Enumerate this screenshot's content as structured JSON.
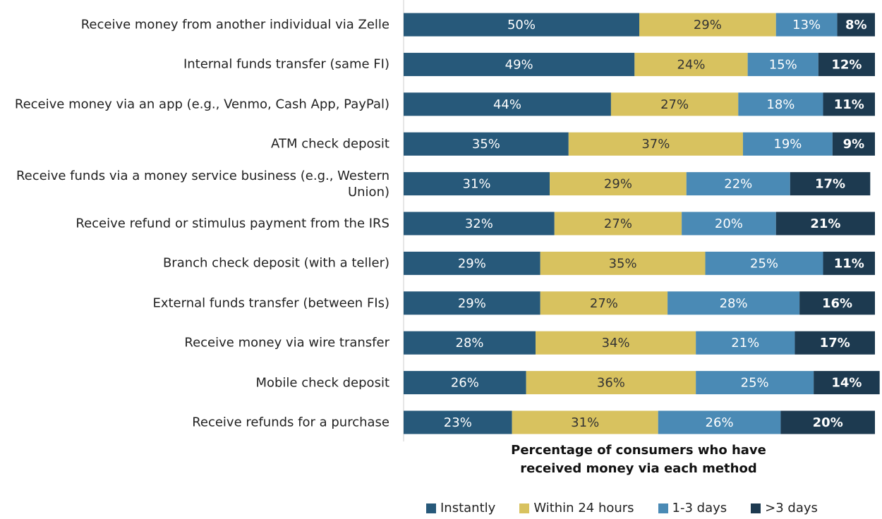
{
  "chart_data": {
    "type": "stacked-barh",
    "categories": [
      "Receive money from another individual via Zelle",
      "Internal funds transfer (same FI)",
      "Receive money via an app (e.g., Venmo, Cash App, PayPal)",
      "ATM check deposit",
      "Receive funds via a money service business (e.g., Western Union)",
      "Receive refund or stimulus payment from the IRS",
      "Branch check deposit (with a teller)",
      "External funds transfer (between FIs)",
      "Receive money via wire transfer",
      "Mobile check deposit",
      "Receive refunds for a purchase"
    ],
    "series": [
      {
        "name": "Instantly",
        "color": "#27597a",
        "values": [
          50,
          49,
          44,
          35,
          31,
          32,
          29,
          29,
          28,
          26,
          23
        ],
        "value_labels": [
          "50%",
          "49%",
          "44%",
          "35%",
          "31%",
          "32%",
          "29%",
          "29%",
          "28%",
          "26%",
          "23%"
        ]
      },
      {
        "name": "Within 24 hours",
        "color": "#d8c25f",
        "values": [
          29,
          24,
          27,
          37,
          29,
          27,
          35,
          27,
          34,
          36,
          31
        ],
        "value_labels": [
          "29%",
          "24%",
          "27%",
          "37%",
          "29%",
          "27%",
          "35%",
          "27%",
          "34%",
          "36%",
          "31%"
        ]
      },
      {
        "name": "1-3 days",
        "color": "#4a8ab5",
        "values": [
          13,
          15,
          18,
          19,
          22,
          20,
          25,
          28,
          21,
          25,
          26
        ],
        "value_labels": [
          "13%",
          "15%",
          "18%",
          "19%",
          "22%",
          "20%",
          "25%",
          "28%",
          "21%",
          "25%",
          "26%"
        ]
      },
      {
        "name": ">3 days",
        "color": "#1d3a50",
        "values": [
          8,
          12,
          11,
          9,
          17,
          21,
          11,
          16,
          17,
          14,
          20
        ],
        "value_labels": [
          "8%",
          "12%",
          "11%",
          "9%",
          "17%",
          "21%",
          "11%",
          "16%",
          "17%",
          "14%",
          "20%"
        ]
      }
    ],
    "xlim": [
      0,
      100
    ],
    "xlabel": "Percentage of consumers who have received money via each method"
  }
}
